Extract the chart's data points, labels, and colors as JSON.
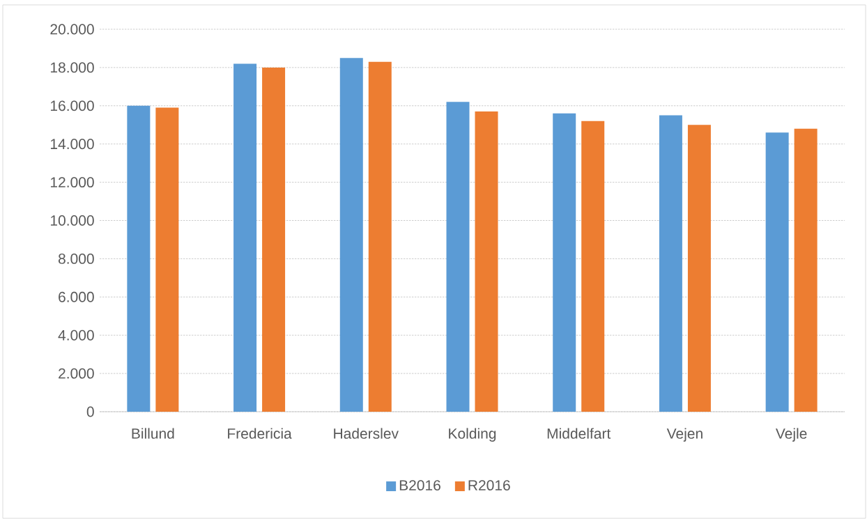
{
  "chart_data": {
    "type": "bar",
    "categories": [
      "Billund",
      "Fredericia",
      "Haderslev",
      "Kolding",
      "Middelfart",
      "Vejen",
      "Vejle"
    ],
    "series": [
      {
        "name": "B2016",
        "color": "#5b9bd5",
        "values": [
          16000,
          18200,
          18500,
          16200,
          15600,
          15500,
          14600
        ]
      },
      {
        "name": "R2016",
        "color": "#ed7d31",
        "values": [
          15900,
          18000,
          18300,
          15700,
          15200,
          15000,
          14800
        ]
      }
    ],
    "ylim": [
      0,
      20000
    ],
    "yticks": [
      {
        "value": 0,
        "label": "0"
      },
      {
        "value": 2000,
        "label": "2.000"
      },
      {
        "value": 4000,
        "label": "4.000"
      },
      {
        "value": 6000,
        "label": "6.000"
      },
      {
        "value": 8000,
        "label": "8.000"
      },
      {
        "value": 10000,
        "label": "10.000"
      },
      {
        "value": 12000,
        "label": "12.000"
      },
      {
        "value": 14000,
        "label": "14.000"
      },
      {
        "value": 16000,
        "label": "16.000"
      },
      {
        "value": 18000,
        "label": "18.000"
      },
      {
        "value": 20000,
        "label": "20.000"
      }
    ],
    "grid": "y",
    "legend": "bottom"
  }
}
